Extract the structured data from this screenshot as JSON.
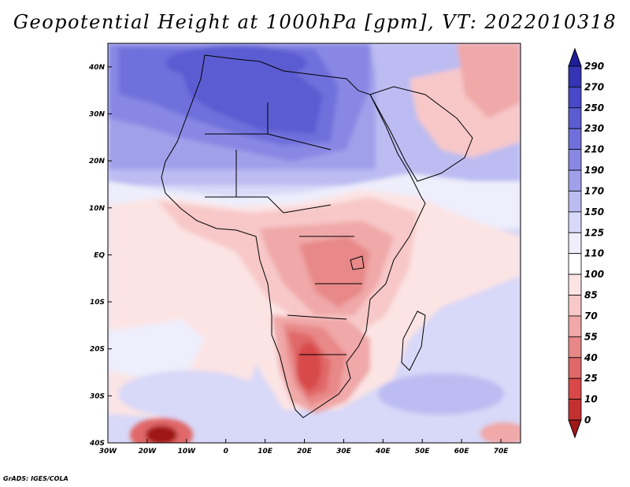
{
  "title": "Geopotential Height at 1000hPa [gpm], VT: 2022010318",
  "credit": "GrADS: IGES/COLA",
  "map": {
    "variable": "Geopotential Height at 1000hPa",
    "units": "gpm",
    "valid_time": "2022010318",
    "lon_range": [
      -30,
      75
    ],
    "lat_range": [
      -40,
      45
    ],
    "lon_ticks": [
      "30W",
      "20W",
      "10W",
      "0",
      "10E",
      "20E",
      "30E",
      "40E",
      "50E",
      "60E",
      "70E"
    ],
    "lat_ticks": [
      "40N",
      "30N",
      "20N",
      "10N",
      "EQ",
      "10S",
      "20S",
      "30S",
      "40S"
    ]
  },
  "colorbar": {
    "labels": [
      "290",
      "270",
      "250",
      "230",
      "210",
      "190",
      "170",
      "150",
      "125",
      "110",
      "100",
      "85",
      "70",
      "55",
      "40",
      "25",
      "10",
      "0"
    ],
    "colors": [
      "#1e1e9a",
      "#3434b4",
      "#4848c8",
      "#5c5cd2",
      "#7070dc",
      "#8888e4",
      "#a0a0ea",
      "#bcbcf2",
      "#d8d8f8",
      "#eeeefc",
      "#ffffff",
      "#fce4e4",
      "#f8c8c8",
      "#f0a8a8",
      "#e88888",
      "#e06868",
      "#d84848",
      "#c43030",
      "#a01818"
    ]
  },
  "regions": {
    "high_centres": [
      "North Africa / Sahara",
      "Mediterranean",
      "Atlantic"
    ],
    "low_centres": [
      "Southern Africa",
      "Central Africa",
      "Arabian Peninsula",
      "South Atlantic 40S"
    ]
  }
}
